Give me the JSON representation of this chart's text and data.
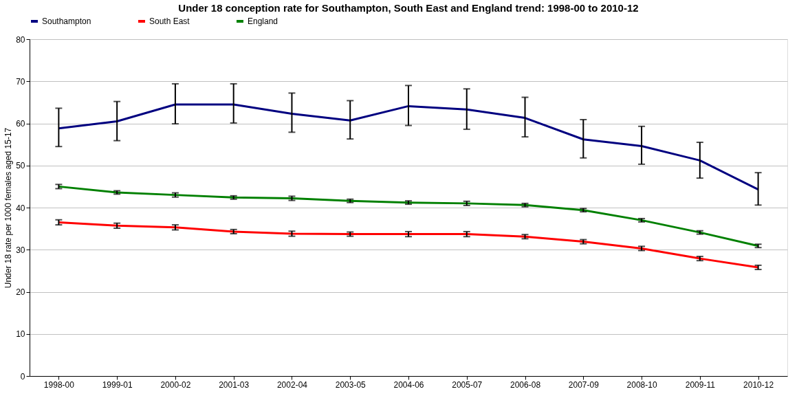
{
  "chart_data": {
    "type": "line",
    "title": "Under 18 conception rate for Southampton, South East and England trend: 1998-00 to 2010-12",
    "ylabel": "Under 18 rate per 1000 females aged 15-17",
    "categories": [
      "1998-00",
      "1999-01",
      "2000-02",
      "2001-03",
      "2002-04",
      "2003-05",
      "2004-06",
      "2005-07",
      "2006-08",
      "2007-09",
      "2008-10",
      "2009-11",
      "2010-12"
    ],
    "series": [
      {
        "name": "Southampton",
        "color": "#000080",
        "values": [
          58.8,
          60.5,
          64.5,
          64.5,
          62.3,
          60.7,
          64.1,
          63.3,
          61.3,
          56.2,
          54.6,
          51.2,
          44.3
        ],
        "errors": [
          [
            54.5,
            63.6
          ],
          [
            55.9,
            65.2
          ],
          [
            59.9,
            69.4
          ],
          [
            60.1,
            69.4
          ],
          [
            57.9,
            67.2
          ],
          [
            56.3,
            65.4
          ],
          [
            59.5,
            69.0
          ],
          [
            58.6,
            68.2
          ],
          [
            56.8,
            66.2
          ],
          [
            51.8,
            60.9
          ],
          [
            50.3,
            59.3
          ],
          [
            47.0,
            55.5
          ],
          [
            40.6,
            48.3
          ]
        ]
      },
      {
        "name": "South East",
        "color": "#ff0000",
        "values": [
          36.5,
          35.7,
          35.3,
          34.3,
          33.8,
          33.7,
          33.7,
          33.7,
          33.1,
          31.9,
          30.3,
          27.9,
          25.8
        ],
        "errors": [
          0.6,
          0.6,
          0.6,
          0.5,
          0.6,
          0.5,
          0.6,
          0.6,
          0.5,
          0.5,
          0.5,
          0.5,
          0.5
        ]
      },
      {
        "name": "England",
        "color": "#008000",
        "values": [
          45.0,
          43.6,
          43.0,
          42.4,
          42.2,
          41.6,
          41.2,
          41.0,
          40.6,
          39.4,
          37.0,
          34.1,
          30.9
        ],
        "errors": [
          0.5,
          0.4,
          0.5,
          0.4,
          0.5,
          0.4,
          0.4,
          0.5,
          0.4,
          0.4,
          0.4,
          0.4,
          0.4
        ]
      }
    ],
    "ylim": [
      0,
      80
    ],
    "yticks": [
      0,
      10,
      20,
      30,
      40,
      50,
      60,
      70,
      80
    ],
    "grid": "y",
    "legend": "top",
    "line_style": "solid"
  }
}
